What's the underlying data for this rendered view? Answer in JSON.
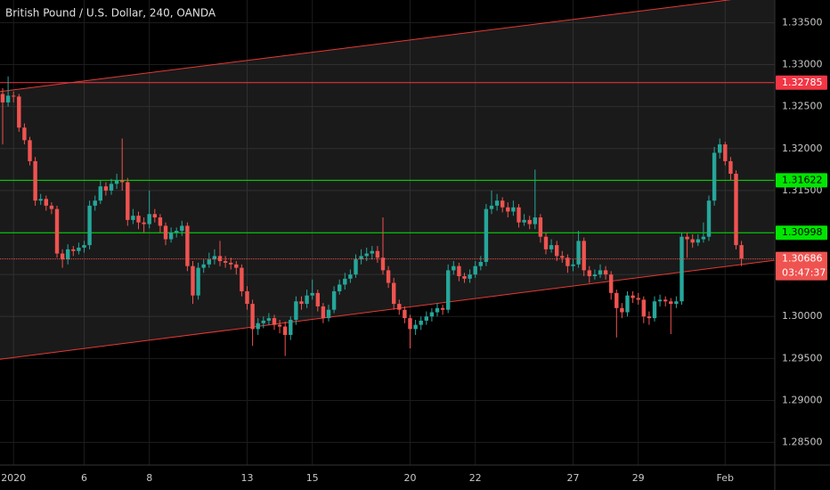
{
  "chart_data": {
    "type": "candlestick",
    "title": "British Pound / U.S. Dollar, 240, OANDA",
    "up_color": "#26a69a",
    "down_color": "#ef5350",
    "grid": true,
    "ylim": [
      1.2823,
      1.3377
    ],
    "yticks": [
      {
        "value": 1.285,
        "label": "1.28500"
      },
      {
        "value": 1.29,
        "label": "1.29000"
      },
      {
        "value": 1.295,
        "label": "1.29500"
      },
      {
        "value": 1.3,
        "label": "1.30000"
      },
      {
        "value": 1.305,
        "label": "1.30500"
      },
      {
        "value": 1.31,
        "label": "1.31000"
      },
      {
        "value": 1.315,
        "label": "1.31500"
      },
      {
        "value": 1.32,
        "label": "1.32000"
      },
      {
        "value": 1.325,
        "label": "1.32500"
      },
      {
        "value": 1.33,
        "label": "1.33000"
      },
      {
        "value": 1.335,
        "label": "1.33500"
      }
    ],
    "categories": [
      null,
      null,
      "2020",
      null,
      null,
      null,
      null,
      null,
      null,
      null,
      null,
      null,
      null,
      null,
      null,
      "6",
      null,
      null,
      null,
      null,
      null,
      null,
      null,
      null,
      null,
      null,
      null,
      "8",
      null,
      null,
      null,
      null,
      null,
      null,
      null,
      null,
      null,
      null,
      null,
      null,
      null,
      null,
      null,
      null,
      null,
      "13",
      null,
      null,
      null,
      null,
      null,
      null,
      null,
      null,
      null,
      null,
      null,
      "15",
      null,
      null,
      null,
      null,
      null,
      null,
      null,
      null,
      null,
      null,
      null,
      null,
      null,
      null,
      null,
      null,
      null,
      "20",
      null,
      null,
      null,
      null,
      null,
      null,
      null,
      null,
      null,
      null,
      null,
      "22",
      null,
      null,
      null,
      null,
      null,
      null,
      null,
      null,
      null,
      null,
      null,
      null,
      null,
      null,
      null,
      null,
      null,
      "27",
      null,
      null,
      null,
      null,
      null,
      null,
      null,
      null,
      null,
      null,
      null,
      "29",
      null,
      null,
      null,
      null,
      null,
      null,
      null,
      null,
      null,
      null,
      null,
      null,
      null,
      null,
      null,
      "Feb",
      null,
      null,
      null
    ],
    "ohlc": [
      [
        1.3265,
        1.3272,
        1.3205,
        1.3255
      ],
      [
        1.3255,
        1.3286,
        1.325,
        1.3263
      ],
      [
        1.3263,
        1.3268,
        1.3255,
        1.3262
      ],
      [
        1.3262,
        1.3265,
        1.322,
        1.3225
      ],
      [
        1.3225,
        1.323,
        1.3205,
        1.321
      ],
      [
        1.321,
        1.3214,
        1.318,
        1.3185
      ],
      [
        1.3185,
        1.319,
        1.3132,
        1.3138
      ],
      [
        1.3138,
        1.3146,
        1.3133,
        1.314
      ],
      [
        1.314,
        1.3144,
        1.3126,
        1.3132
      ],
      [
        1.3132,
        1.3136,
        1.3122,
        1.3128
      ],
      [
        1.3128,
        1.3132,
        1.307,
        1.3075
      ],
      [
        1.3075,
        1.308,
        1.3058,
        1.3068
      ],
      [
        1.3068,
        1.3086,
        1.3062,
        1.308
      ],
      [
        1.308,
        1.3084,
        1.3072,
        1.3078
      ],
      [
        1.3078,
        1.3088,
        1.3074,
        1.3082
      ],
      [
        1.3082,
        1.309,
        1.3076,
        1.3085
      ],
      [
        1.3085,
        1.3138,
        1.308,
        1.3132
      ],
      [
        1.3132,
        1.3144,
        1.3126,
        1.3138
      ],
      [
        1.3138,
        1.3162,
        1.3134,
        1.3155
      ],
      [
        1.3155,
        1.316,
        1.3144,
        1.315
      ],
      [
        1.315,
        1.3164,
        1.3145,
        1.3158
      ],
      [
        1.3158,
        1.317,
        1.3152,
        1.3162
      ],
      [
        1.3162,
        1.3212,
        1.315,
        1.316
      ],
      [
        1.316,
        1.3165,
        1.3108,
        1.3115
      ],
      [
        1.3115,
        1.3128,
        1.311,
        1.312
      ],
      [
        1.312,
        1.3125,
        1.3104,
        1.3112
      ],
      [
        1.3112,
        1.3118,
        1.31,
        1.311
      ],
      [
        1.311,
        1.315,
        1.3105,
        1.3122
      ],
      [
        1.3122,
        1.3128,
        1.3112,
        1.3118
      ],
      [
        1.3118,
        1.3122,
        1.31,
        1.3108
      ],
      [
        1.3108,
        1.3112,
        1.3085,
        1.3092
      ],
      [
        1.3092,
        1.3106,
        1.3088,
        1.31
      ],
      [
        1.31,
        1.3106,
        1.3094,
        1.3102
      ],
      [
        1.3102,
        1.3114,
        1.3096,
        1.3108
      ],
      [
        1.3108,
        1.3112,
        1.3054,
        1.306
      ],
      [
        1.306,
        1.3066,
        1.3015,
        1.3025
      ],
      [
        1.3025,
        1.3064,
        1.302,
        1.3058
      ],
      [
        1.3058,
        1.3068,
        1.3052,
        1.3062
      ],
      [
        1.3062,
        1.3076,
        1.3058,
        1.3068
      ],
      [
        1.3068,
        1.308,
        1.3062,
        1.3072
      ],
      [
        1.3072,
        1.309,
        1.306,
        1.3066
      ],
      [
        1.3066,
        1.3072,
        1.3058,
        1.3064
      ],
      [
        1.3064,
        1.307,
        1.3056,
        1.3062
      ],
      [
        1.3062,
        1.3066,
        1.305,
        1.3058
      ],
      [
        1.3058,
        1.3062,
        1.3024,
        1.303
      ],
      [
        1.303,
        1.3036,
        1.3008,
        1.3015
      ],
      [
        1.3015,
        1.302,
        1.2965,
        1.2985
      ],
      [
        1.2985,
        1.2998,
        1.2978,
        1.2992
      ],
      [
        1.2992,
        1.3,
        1.2986,
        1.2995
      ],
      [
        1.2995,
        1.3004,
        1.299,
        1.2998
      ],
      [
        1.2998,
        1.3002,
        1.2984,
        1.299
      ],
      [
        1.299,
        1.2996,
        1.298,
        1.2988
      ],
      [
        1.2988,
        1.2994,
        1.2953,
        1.2978
      ],
      [
        1.2978,
        1.3,
        1.2972,
        1.2996
      ],
      [
        1.2996,
        1.3024,
        1.299,
        1.3018
      ],
      [
        1.3018,
        1.3024,
        1.3008,
        1.3015
      ],
      [
        1.3015,
        1.3032,
        1.301,
        1.3025
      ],
      [
        1.3025,
        1.3044,
        1.302,
        1.3028
      ],
      [
        1.3028,
        1.3032,
        1.3006,
        1.3012
      ],
      [
        1.3012,
        1.3016,
        1.2992,
        1.2998
      ],
      [
        1.2998,
        1.3014,
        1.2994,
        1.3008
      ],
      [
        1.3008,
        1.3036,
        1.3004,
        1.303
      ],
      [
        1.303,
        1.3044,
        1.3026,
        1.3038
      ],
      [
        1.3038,
        1.3052,
        1.3032,
        1.3045
      ],
      [
        1.3045,
        1.3056,
        1.304,
        1.305
      ],
      [
        1.305,
        1.3074,
        1.3046,
        1.3068
      ],
      [
        1.3068,
        1.308,
        1.3062,
        1.3072
      ],
      [
        1.3072,
        1.3082,
        1.3066,
        1.3075
      ],
      [
        1.3075,
        1.3084,
        1.3068,
        1.3078
      ],
      [
        1.3078,
        1.3084,
        1.3064,
        1.307
      ],
      [
        1.307,
        1.3118,
        1.305,
        1.3055
      ],
      [
        1.3055,
        1.306,
        1.3034,
        1.304
      ],
      [
        1.304,
        1.3046,
        1.3008,
        1.3015
      ],
      [
        1.3015,
        1.302,
        1.3002,
        1.3008
      ],
      [
        1.3008,
        1.3012,
        1.2992,
        1.2998
      ],
      [
        1.2998,
        1.3002,
        1.2962,
        1.2985
      ],
      [
        1.2985,
        1.2996,
        1.2978,
        1.299
      ],
      [
        1.299,
        1.3,
        1.2984,
        1.2995
      ],
      [
        1.2995,
        1.3006,
        1.299,
        1.3
      ],
      [
        1.3,
        1.301,
        1.2994,
        1.3005
      ],
      [
        1.3005,
        1.3016,
        1.3,
        1.301
      ],
      [
        1.301,
        1.3014,
        1.3002,
        1.3008
      ],
      [
        1.3008,
        1.3062,
        1.3004,
        1.3055
      ],
      [
        1.3055,
        1.3066,
        1.305,
        1.306
      ],
      [
        1.306,
        1.3064,
        1.3042,
        1.3048
      ],
      [
        1.3048,
        1.3052,
        1.304,
        1.3045
      ],
      [
        1.3045,
        1.3056,
        1.304,
        1.305
      ],
      [
        1.305,
        1.3066,
        1.3046,
        1.306
      ],
      [
        1.306,
        1.3072,
        1.3055,
        1.3065
      ],
      [
        1.3065,
        1.3134,
        1.306,
        1.3128
      ],
      [
        1.3128,
        1.315,
        1.3122,
        1.3132
      ],
      [
        1.3132,
        1.3146,
        1.3126,
        1.3138
      ],
      [
        1.3138,
        1.3142,
        1.3124,
        1.313
      ],
      [
        1.313,
        1.3136,
        1.3118,
        1.3125
      ],
      [
        1.3125,
        1.3138,
        1.312,
        1.313
      ],
      [
        1.313,
        1.3134,
        1.3106,
        1.3112
      ],
      [
        1.3112,
        1.3122,
        1.3108,
        1.3115
      ],
      [
        1.3115,
        1.312,
        1.3104,
        1.311
      ],
      [
        1.311,
        1.3175,
        1.3104,
        1.3118
      ],
      [
        1.3118,
        1.3122,
        1.3088,
        1.3095
      ],
      [
        1.3095,
        1.31,
        1.3074,
        1.308
      ],
      [
        1.308,
        1.3092,
        1.3076,
        1.3085
      ],
      [
        1.3085,
        1.309,
        1.3066,
        1.3072
      ],
      [
        1.3072,
        1.3078,
        1.3064,
        1.307
      ],
      [
        1.307,
        1.3074,
        1.3052,
        1.306
      ],
      [
        1.306,
        1.3068,
        1.3054,
        1.3062
      ],
      [
        1.3062,
        1.3102,
        1.3058,
        1.309
      ],
      [
        1.309,
        1.3094,
        1.3048,
        1.3055
      ],
      [
        1.3055,
        1.306,
        1.304,
        1.3048
      ],
      [
        1.3048,
        1.3056,
        1.3044,
        1.305
      ],
      [
        1.305,
        1.3062,
        1.3046,
        1.3055
      ],
      [
        1.3055,
        1.306,
        1.3044,
        1.305
      ],
      [
        1.305,
        1.3054,
        1.302,
        1.3028
      ],
      [
        1.3028,
        1.3032,
        1.2975,
        1.301
      ],
      [
        1.301,
        1.3016,
        1.2998,
        1.3005
      ],
      [
        1.3005,
        1.303,
        1.3,
        1.3025
      ],
      [
        1.3025,
        1.303,
        1.3016,
        1.3022
      ],
      [
        1.3022,
        1.3028,
        1.3014,
        1.302
      ],
      [
        1.302,
        1.3024,
        1.2992,
        1.3
      ],
      [
        1.3,
        1.3006,
        1.299,
        1.2998
      ],
      [
        1.2998,
        1.3024,
        1.2994,
        1.3018
      ],
      [
        1.3018,
        1.3026,
        1.3012,
        1.302
      ],
      [
        1.302,
        1.3024,
        1.3012,
        1.3018
      ],
      [
        1.3018,
        1.3022,
        1.2979,
        1.3015
      ],
      [
        1.3015,
        1.3024,
        1.301,
        1.3018
      ],
      [
        1.3018,
        1.31,
        1.3014,
        1.3095
      ],
      [
        1.3095,
        1.31,
        1.307,
        1.3092
      ],
      [
        1.3092,
        1.3098,
        1.3082,
        1.3088
      ],
      [
        1.3088,
        1.3098,
        1.3084,
        1.3092
      ],
      [
        1.3092,
        1.3112,
        1.3088,
        1.3095
      ],
      [
        1.3095,
        1.3144,
        1.309,
        1.3138
      ],
      [
        1.3138,
        1.3202,
        1.3132,
        1.3195
      ],
      [
        1.3195,
        1.3212,
        1.3188,
        1.3205
      ],
      [
        1.3205,
        1.3208,
        1.318,
        1.3185
      ],
      [
        1.3185,
        1.319,
        1.3162,
        1.317
      ],
      [
        1.317,
        1.3174,
        1.308,
        1.3085
      ],
      [
        1.3085,
        1.309,
        1.306,
        1.3069
      ]
    ],
    "channel": {
      "upper": [
        1.3268,
        1.3384
      ],
      "lower": [
        1.2949,
        1.3067
      ],
      "color": "#e53935",
      "fill": "rgba(130,130,130,0.2)"
    },
    "levels": [
      {
        "value": 1.32785,
        "color": "#f23645",
        "text_color": "#ffffff"
      },
      {
        "value": 1.31622,
        "color": "#00e600",
        "text_color": "#000000"
      },
      {
        "value": 1.30998,
        "color": "#00e600",
        "text_color": "#000000"
      }
    ],
    "last_price": 1.30686,
    "last_color": "#ef5350",
    "countdown": "03:47:37"
  }
}
